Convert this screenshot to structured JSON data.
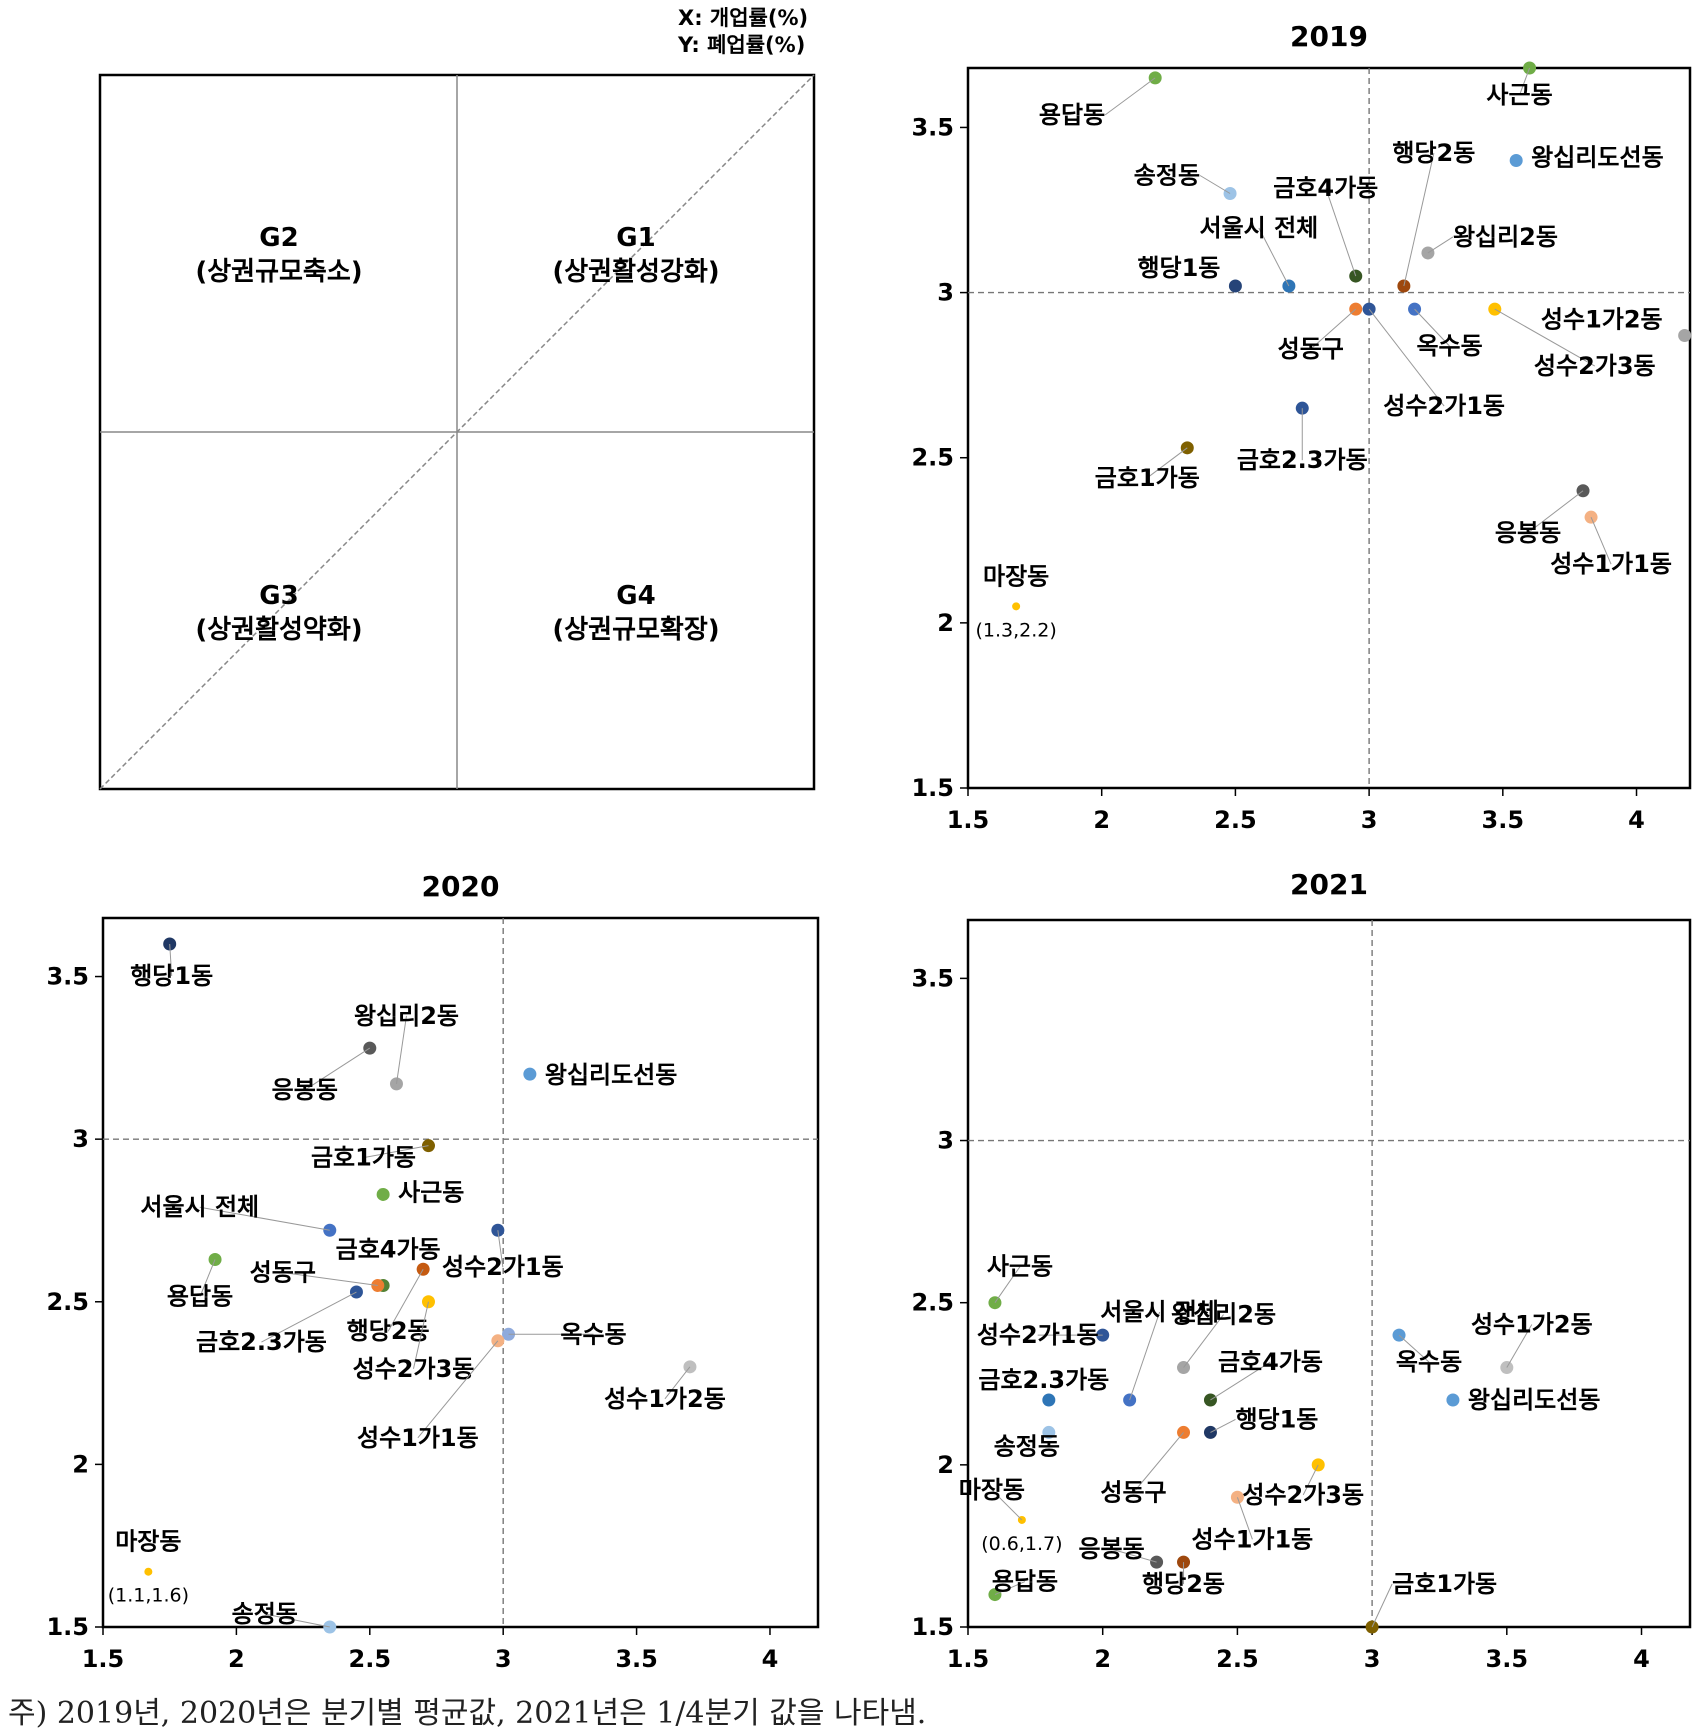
{
  "axis_legend": {
    "x": "X: 개업률(%)",
    "y": "Y: 폐업률(%)"
  },
  "note": "주) 2019년, 2020년은 분기별 평균값, 2021년은 1/4분기 값을 나타냄.",
  "quadrant_labels": {
    "g1": [
      "G1",
      "(상권활성강화)"
    ],
    "g2": [
      "G2",
      "(상권규모축소)"
    ],
    "g3": [
      "G3",
      "(상권활성약화)"
    ],
    "g4": [
      "G4",
      "(상권규모확장)"
    ]
  },
  "chart_data": [
    {
      "type": "scatter",
      "title": "2019",
      "xlim": [
        1.5,
        4.2
      ],
      "ylim": [
        1.5,
        3.68
      ],
      "xticks": [
        "1.5",
        "2",
        "2.5",
        "3",
        "3.5",
        "4"
      ],
      "yticks": [
        "1.5",
        "2",
        "2.5",
        "3",
        "3.5"
      ],
      "reference_lines": {
        "x": 3.0,
        "y": 3.0
      },
      "points": [
        {
          "label": "용답동",
          "x": 2.2,
          "y": 3.65,
          "color": "#70ad47"
        },
        {
          "label": "사근동",
          "x": 3.6,
          "y": 3.68,
          "color": "#70ad47"
        },
        {
          "label": "행당2동",
          "x": 3.13,
          "y": 3.02,
          "color": "#9e480e"
        },
        {
          "label": "왕십리도선동",
          "x": 3.55,
          "y": 3.4,
          "color": "#5b9bd5"
        },
        {
          "label": "송정동",
          "x": 2.48,
          "y": 3.3,
          "color": "#9dc3e6"
        },
        {
          "label": "금호4가동",
          "x": 2.95,
          "y": 3.05,
          "color": "#375623"
        },
        {
          "label": "서울시 전체",
          "x": 2.7,
          "y": 3.02,
          "color": "#2e75b6"
        },
        {
          "label": "왕십리2동",
          "x": 3.22,
          "y": 3.12,
          "color": "#a5a5a5"
        },
        {
          "label": "행당1동",
          "x": 2.5,
          "y": 3.02,
          "color": "#264478"
        },
        {
          "label": "성동구",
          "x": 2.95,
          "y": 2.95,
          "color": "#ed7d31"
        },
        {
          "label": "성수2가1동",
          "x": 3.0,
          "y": 2.95,
          "color": "#2f5597"
        },
        {
          "label": "옥수동",
          "x": 3.17,
          "y": 2.95,
          "color": "#4472c4"
        },
        {
          "label": "성수2가3동",
          "x": 3.47,
          "y": 2.95,
          "color": "#ffc000"
        },
        {
          "label": "성수1가2동",
          "x": 4.18,
          "y": 2.87,
          "color": "#a5a5a5"
        },
        {
          "label": "금호2.3가동",
          "x": 2.75,
          "y": 2.65,
          "color": "#2e5597"
        },
        {
          "label": "금호1가동",
          "x": 2.32,
          "y": 2.53,
          "color": "#7f6000"
        },
        {
          "label": "응봉동",
          "x": 3.8,
          "y": 2.4,
          "color": "#595959"
        },
        {
          "label": "성수1가1동",
          "x": 3.83,
          "y": 2.32,
          "color": "#f4b183"
        },
        {
          "label": "마장동",
          "x": 1.68,
          "y": 2.05,
          "color": "#ffc000",
          "value_label": "(1.3,2.2)"
        }
      ]
    },
    {
      "type": "scatter",
      "title": "2020",
      "xlim": [
        1.5,
        4.18
      ],
      "ylim": [
        1.5,
        3.68
      ],
      "xticks": [
        "1.5",
        "2",
        "2.5",
        "3",
        "3.5",
        "4"
      ],
      "yticks": [
        "1.5",
        "2",
        "2.5",
        "3",
        "3.5"
      ],
      "reference_lines": {
        "x": 3.0,
        "y": 3.0
      },
      "points": [
        {
          "label": "행당1동",
          "x": 1.75,
          "y": 3.6,
          "color": "#203864"
        },
        {
          "label": "응봉동",
          "x": 2.5,
          "y": 3.28,
          "color": "#595959"
        },
        {
          "label": "왕십리2동",
          "x": 2.6,
          "y": 3.17,
          "color": "#a5a5a5"
        },
        {
          "label": "왕십리도선동",
          "x": 3.1,
          "y": 3.2,
          "color": "#5b9bd5"
        },
        {
          "label": "금호1가동",
          "x": 2.72,
          "y": 2.98,
          "color": "#7f6000"
        },
        {
          "label": "사근동",
          "x": 2.55,
          "y": 2.83,
          "color": "#70ad47"
        },
        {
          "label": "서울시 전체",
          "x": 2.35,
          "y": 2.72,
          "color": "#4472c4"
        },
        {
          "label": "성수2가1동",
          "x": 2.98,
          "y": 2.72,
          "color": "#2f5597"
        },
        {
          "label": "금호4가동",
          "x": 2.55,
          "y": 2.55,
          "color": "#548235"
        },
        {
          "label": "성동구",
          "x": 2.53,
          "y": 2.55,
          "color": "#ed7d31"
        },
        {
          "label": "용답동",
          "x": 1.92,
          "y": 2.63,
          "color": "#70ad47"
        },
        {
          "label": "금호2.3가동",
          "x": 2.45,
          "y": 2.53,
          "color": "#2e5597"
        },
        {
          "label": "행당2동",
          "x": 2.7,
          "y": 2.6,
          "color": "#c55a11"
        },
        {
          "label": "성수2가3동",
          "x": 2.72,
          "y": 2.5,
          "color": "#ffc000"
        },
        {
          "label": "옥수동",
          "x": 3.02,
          "y": 2.4,
          "color": "#8faadc"
        },
        {
          "label": "성수1가1동",
          "x": 2.98,
          "y": 2.38,
          "color": "#f4b183"
        },
        {
          "label": "성수1가2동",
          "x": 3.7,
          "y": 2.3,
          "color": "#bfbfbf"
        },
        {
          "label": "마장동",
          "x": 1.67,
          "y": 1.67,
          "color": "#ffc000",
          "value_label": "(1.1,1.6)"
        },
        {
          "label": "송정동",
          "x": 2.35,
          "y": 1.5,
          "color": "#9dc3e6"
        }
      ]
    },
    {
      "type": "scatter",
      "title": "2021",
      "xlim": [
        1.5,
        4.18
      ],
      "ylim": [
        1.5,
        3.68
      ],
      "xticks": [
        "1.5",
        "2",
        "2.5",
        "3",
        "3.5",
        "4"
      ],
      "yticks": [
        "1.5",
        "2",
        "2.5",
        "3",
        "3.5"
      ],
      "reference_lines": {
        "x": 3.0,
        "y": 3.0
      },
      "points": [
        {
          "label": "사근동",
          "x": 1.6,
          "y": 2.5,
          "color": "#70ad47"
        },
        {
          "label": "성수2가1동",
          "x": 2.0,
          "y": 2.4,
          "color": "#2f5597"
        },
        {
          "label": "서울시 전체",
          "x": 2.1,
          "y": 2.2,
          "color": "#4472c4"
        },
        {
          "label": "금호2.3가동",
          "x": 1.8,
          "y": 2.2,
          "color": "#2e75b6"
        },
        {
          "label": "송정동",
          "x": 1.8,
          "y": 2.1,
          "color": "#9dc3e6"
        },
        {
          "label": "왕십리2동",
          "x": 2.3,
          "y": 2.3,
          "color": "#a5a5a5"
        },
        {
          "label": "금호4가동",
          "x": 2.4,
          "y": 2.2,
          "color": "#375623"
        },
        {
          "label": "행당1동",
          "x": 2.4,
          "y": 2.1,
          "color": "#203864"
        },
        {
          "label": "성동구",
          "x": 2.3,
          "y": 2.1,
          "color": "#ed7d31"
        },
        {
          "label": "성수2가3동",
          "x": 2.8,
          "y": 2.0,
          "color": "#ffc000"
        },
        {
          "label": "성수1가1동",
          "x": 2.5,
          "y": 1.9,
          "color": "#f4b183"
        },
        {
          "label": "응봉동",
          "x": 2.2,
          "y": 1.7,
          "color": "#595959"
        },
        {
          "label": "행당2동",
          "x": 2.3,
          "y": 1.7,
          "color": "#9e480e"
        },
        {
          "label": "마장동",
          "x": 1.7,
          "y": 1.83,
          "color": "#ffc000",
          "value_label": "(0.6,1.7)"
        },
        {
          "label": "용답동",
          "x": 1.6,
          "y": 1.6,
          "color": "#70ad47"
        },
        {
          "label": "옥수동",
          "x": 3.1,
          "y": 2.4,
          "color": "#5b9bd5"
        },
        {
          "label": "성수1가2동",
          "x": 3.5,
          "y": 2.3,
          "color": "#bfbfbf"
        },
        {
          "label": "왕십리도선동",
          "x": 3.3,
          "y": 2.2,
          "color": "#5b9bd5"
        },
        {
          "label": "금호1가동",
          "x": 3.0,
          "y": 1.5,
          "color": "#7f6000"
        }
      ]
    }
  ]
}
